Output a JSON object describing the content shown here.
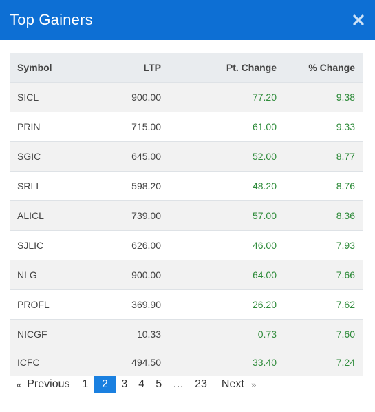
{
  "modal": {
    "title": "Top Gainers"
  },
  "table": {
    "columns": [
      "Symbol",
      "LTP",
      "Pt. Change",
      "% Change"
    ],
    "rows": [
      {
        "symbol": "SICL",
        "ltp": "900.00",
        "pt": "77.20",
        "pct": "9.38"
      },
      {
        "symbol": "PRIN",
        "ltp": "715.00",
        "pt": "61.00",
        "pct": "9.33"
      },
      {
        "symbol": "SGIC",
        "ltp": "645.00",
        "pt": "52.00",
        "pct": "8.77"
      },
      {
        "symbol": "SRLI",
        "ltp": "598.20",
        "pt": "48.20",
        "pct": "8.76"
      },
      {
        "symbol": "ALICL",
        "ltp": "739.00",
        "pt": "57.00",
        "pct": "8.36"
      },
      {
        "symbol": "SJLIC",
        "ltp": "626.00",
        "pt": "46.00",
        "pct": "7.93"
      },
      {
        "symbol": "NLG",
        "ltp": "900.00",
        "pt": "64.00",
        "pct": "7.66"
      },
      {
        "symbol": "PROFL",
        "ltp": "369.90",
        "pt": "26.20",
        "pct": "7.62"
      },
      {
        "symbol": "NICGF",
        "ltp": "10.33",
        "pt": "0.73",
        "pct": "7.60"
      },
      {
        "symbol": "ICFC",
        "ltp": "494.50",
        "pt": "33.40",
        "pct": "7.24"
      }
    ]
  },
  "pagination": {
    "prev_arrow": "«",
    "prev_label": "Previous",
    "pages": [
      "1",
      "2",
      "3",
      "4",
      "5",
      "…",
      "23"
    ],
    "active_page": "2",
    "next_label": "Next",
    "next_arrow": "»"
  },
  "colors": {
    "header_bg": "#0d6fd4",
    "positive": "#2e8b3a",
    "active_page": "#1a80e0"
  }
}
